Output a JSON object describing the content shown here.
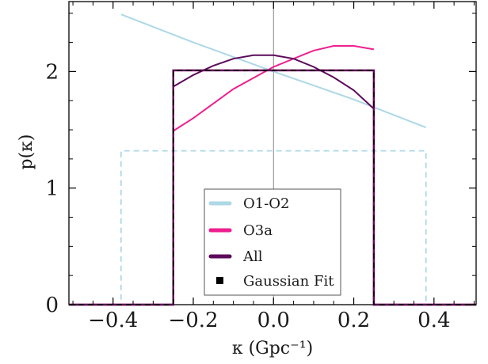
{
  "chart_data": {
    "type": "line",
    "xlabel": "κ (Gpc⁻¹)",
    "ylabel": "p(κ)",
    "xlim": [
      -0.51,
      0.505
    ],
    "ylim": [
      0,
      2.6
    ],
    "x_ticks": [
      -0.4,
      -0.2,
      0.0,
      0.2,
      0.4
    ],
    "x_tick_labels": [
      "−0.4",
      "−0.2",
      "0.0",
      "0.2",
      "0.4"
    ],
    "y_ticks": [
      0,
      1,
      2
    ],
    "y_tick_labels": [
      "0",
      "1",
      "2"
    ],
    "vertical_reference_line_x": 0.0,
    "series": [
      {
        "name": "O1-O2",
        "color": "#add8e6",
        "style": "solid",
        "x": [
          -0.38,
          -0.2,
          0.0,
          0.2,
          0.38
        ],
        "y": [
          2.49,
          2.25,
          2.0,
          1.76,
          1.52
        ]
      },
      {
        "name": "O1-O2",
        "color": "#add8e6",
        "style": "dashed",
        "x": [
          -0.51,
          -0.38,
          -0.38,
          0.38,
          0.38,
          0.505
        ],
        "y": [
          0,
          0,
          1.32,
          1.32,
          0,
          0
        ]
      },
      {
        "name": "O3a",
        "color": "#ee1f8f",
        "style": "solid",
        "x": [
          -0.25,
          -0.2,
          -0.1,
          0.0,
          0.1,
          0.15,
          0.2,
          0.25
        ],
        "y": [
          1.49,
          1.6,
          1.85,
          2.04,
          2.18,
          2.22,
          2.22,
          2.19
        ]
      },
      {
        "name": "O3a",
        "color": "#ee1f8f",
        "style": "step",
        "x": [
          -0.51,
          -0.25,
          -0.25,
          0.25,
          0.25,
          0.505
        ],
        "y": [
          0,
          0,
          2.01,
          2.01,
          0,
          0
        ]
      },
      {
        "name": "All",
        "color": "#5c0a5a",
        "style": "solid",
        "x": [
          -0.25,
          -0.2,
          -0.15,
          -0.1,
          -0.05,
          0.0,
          0.05,
          0.1,
          0.15,
          0.2,
          0.25
        ],
        "y": [
          1.87,
          1.97,
          2.05,
          2.11,
          2.14,
          2.14,
          2.11,
          2.04,
          1.95,
          1.84,
          1.68
        ]
      },
      {
        "name": "All",
        "color": "#5c0a5a",
        "style": "step",
        "x": [
          -0.51,
          -0.25,
          -0.25,
          0.25,
          0.25,
          0.505
        ],
        "y": [
          0,
          0,
          2.01,
          2.01,
          0,
          0
        ]
      },
      {
        "name": "Gaussian Fit",
        "color": "#000000",
        "style": "dashed",
        "x": [
          -0.51,
          -0.25,
          -0.25,
          0.25,
          0.25,
          0.505
        ],
        "y": [
          0,
          0,
          2.01,
          2.01,
          0,
          0
        ]
      }
    ],
    "legend": {
      "position": "lower-center",
      "entries": [
        {
          "label": "O1-O2",
          "color": "#add8e6",
          "marker": "line"
        },
        {
          "label": "O3a",
          "color": "#ee1f8f",
          "marker": "line"
        },
        {
          "label": "All",
          "color": "#5c0a5a",
          "marker": "line"
        },
        {
          "label": "Gaussian Fit",
          "color": "#000000",
          "marker": "square"
        }
      ]
    }
  }
}
